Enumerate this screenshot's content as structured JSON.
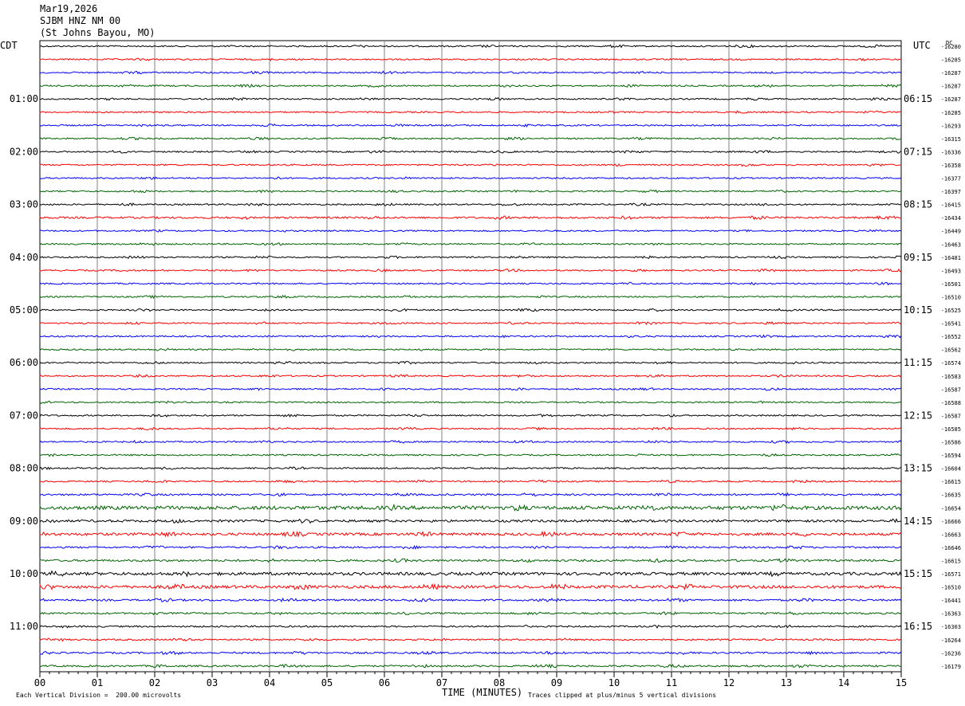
{
  "header": {
    "date": "Mar19,2026",
    "station": "SJBM HNZ NM 00",
    "location": "(St Johns Bayou, MO)"
  },
  "chart_data": {
    "type": "line",
    "left_timezone": "CDT",
    "right_timezone": "UTC",
    "dc_label": "DC",
    "xlabel": "TIME (MINUTES)",
    "x_ticks": [
      "00",
      "01",
      "02",
      "03",
      "04",
      "05",
      "06",
      "07",
      "08",
      "09",
      "10",
      "11",
      "12",
      "13",
      "14",
      "15"
    ],
    "xlim": [
      0,
      15
    ],
    "left_hour_labels": [
      "01:00",
      "02:00",
      "03:00",
      "04:00",
      "05:00",
      "06:00",
      "07:00",
      "08:00",
      "09:00",
      "10:00",
      "11:00"
    ],
    "right_hour_labels": [
      "06:15",
      "07:15",
      "08:15",
      "09:15",
      "10:15",
      "11:15",
      "12:15",
      "13:15",
      "14:15",
      "15:15",
      "16:15"
    ],
    "trace_colors": [
      "#000000",
      "#ff0000",
      "#0000ff",
      "#006400"
    ],
    "dc_offsets": [
      -16280,
      -16285,
      -16287,
      -16287,
      -16287,
      -16285,
      -16293,
      -16315,
      -16336,
      -16358,
      -16377,
      -16397,
      -16415,
      -16434,
      -16449,
      -16463,
      -16481,
      -16493,
      -16501,
      -16510,
      -16525,
      -16541,
      -16552,
      -16562,
      -16574,
      -16583,
      -16587,
      -16588,
      -16587,
      -16585,
      -16586,
      -16594,
      -16604,
      -16615,
      -16635,
      -16654,
      -16666,
      -16663,
      -16646,
      -16615,
      -16571,
      -16510,
      -16441,
      -16363,
      -16303,
      -16264,
      -16236,
      -16179
    ],
    "trace_activity": [
      1,
      1,
      1,
      1,
      1,
      1,
      1,
      1,
      1,
      1,
      1,
      1,
      1,
      1.3,
      1,
      1,
      1,
      1,
      1,
      1,
      1,
      1,
      1,
      1,
      1,
      1,
      1,
      1,
      1,
      1,
      1,
      1,
      1,
      1,
      1.2,
      2.5,
      1.6,
      1.8,
      1.2,
      1.4,
      2,
      2,
      1.3,
      1.2,
      1.1,
      1.1,
      1.2,
      1.2
    ],
    "footer_left": "Each Vertical Division =  200.00 microvolts",
    "footer_right": "Traces clipped at plus/minus 5 vertical divisions"
  }
}
